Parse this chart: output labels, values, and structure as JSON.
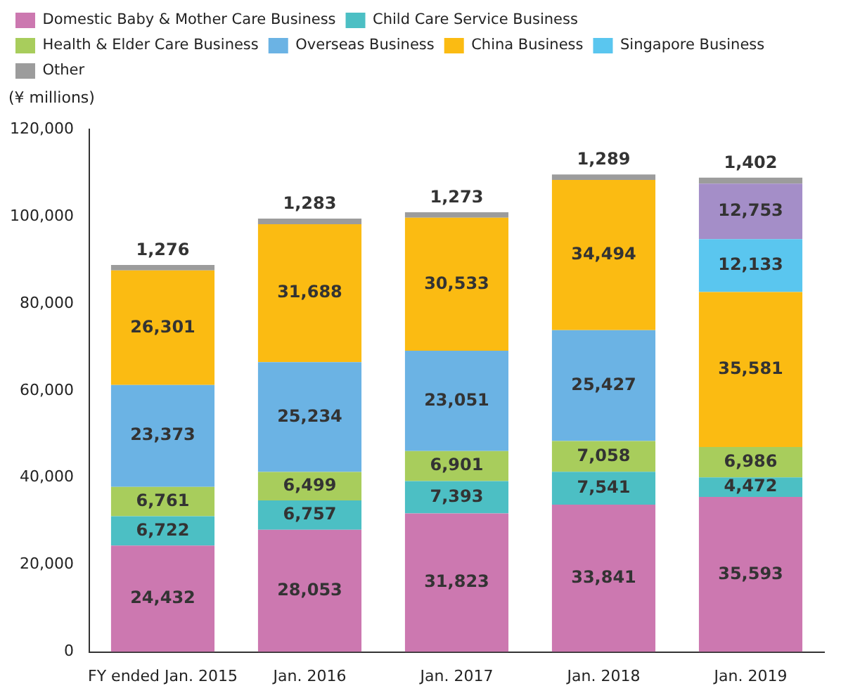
{
  "chart_data": {
    "type": "bar",
    "stacked": true,
    "ylabel": "(¥ millions)",
    "categories": [
      "FY ended Jan. 2015",
      "Jan. 2016",
      "Jan. 2017",
      "Jan. 2018",
      "Jan. 2019"
    ],
    "series": [
      {
        "name": "Domestic Baby & Mother Care Business",
        "color": "#cc78b0",
        "values": [
          24432,
          28053,
          31823,
          33841,
          35593
        ],
        "value_labels": [
          "24,432",
          "28,053",
          "31,823",
          "33,841",
          "35,593"
        ]
      },
      {
        "name": "Child Care Service Business",
        "color": "#4cbfc4",
        "values": [
          6722,
          6757,
          7393,
          7541,
          4472
        ],
        "value_labels": [
          "6,722",
          "6,757",
          "7,393",
          "7,541",
          "4,472"
        ]
      },
      {
        "name": "Health & Elder Care Business",
        "color": "#a8cd5c",
        "values": [
          6761,
          6499,
          6901,
          7058,
          6986
        ],
        "value_labels": [
          "6,761",
          "6,499",
          "6,901",
          "7,058",
          "6,986"
        ]
      },
      {
        "name": "Overseas Business",
        "color": "#6bb3e4",
        "values": [
          23373,
          25234,
          23051,
          25427,
          null
        ],
        "value_labels": [
          "23,373",
          "25,234",
          "23,051",
          "25,427",
          null
        ]
      },
      {
        "name": "China Business",
        "color": "#fbbb12",
        "values": [
          26301,
          31688,
          30533,
          34494,
          35581
        ],
        "value_labels": [
          "26,301",
          "31,688",
          "30,533",
          "34,494",
          "35,581"
        ]
      },
      {
        "name": "Singapore Business",
        "color": "#5ac6ef",
        "values": [
          null,
          null,
          null,
          null,
          12133
        ],
        "value_labels": [
          null,
          null,
          null,
          null,
          "12,133"
        ]
      },
      {
        "color": "#a48ec8",
        "values": [
          null,
          null,
          null,
          null,
          12753
        ],
        "value_labels": [
          null,
          null,
          null,
          null,
          "12,753"
        ]
      },
      {
        "name": "Other",
        "color": "#9c9c9c",
        "values": [
          1276,
          1283,
          1273,
          1289,
          1402
        ],
        "value_labels": [
          "1,276",
          "1,283",
          "1,273",
          "1,289",
          "1,402"
        ]
      }
    ],
    "ylim": [
      0,
      120000
    ],
    "yticks": [
      0,
      {
        "value": 20000,
        "label": "20,000"
      },
      {
        "value": 40000,
        "label": "40,000"
      },
      {
        "value": 60000,
        "label": "60,000"
      },
      {
        "value": 80000,
        "label": "80,000"
      },
      {
        "value": 100000,
        "label": "100,000"
      },
      {
        "value": 120000,
        "label": "120,000"
      }
    ],
    "grid": false,
    "legend": "top"
  }
}
